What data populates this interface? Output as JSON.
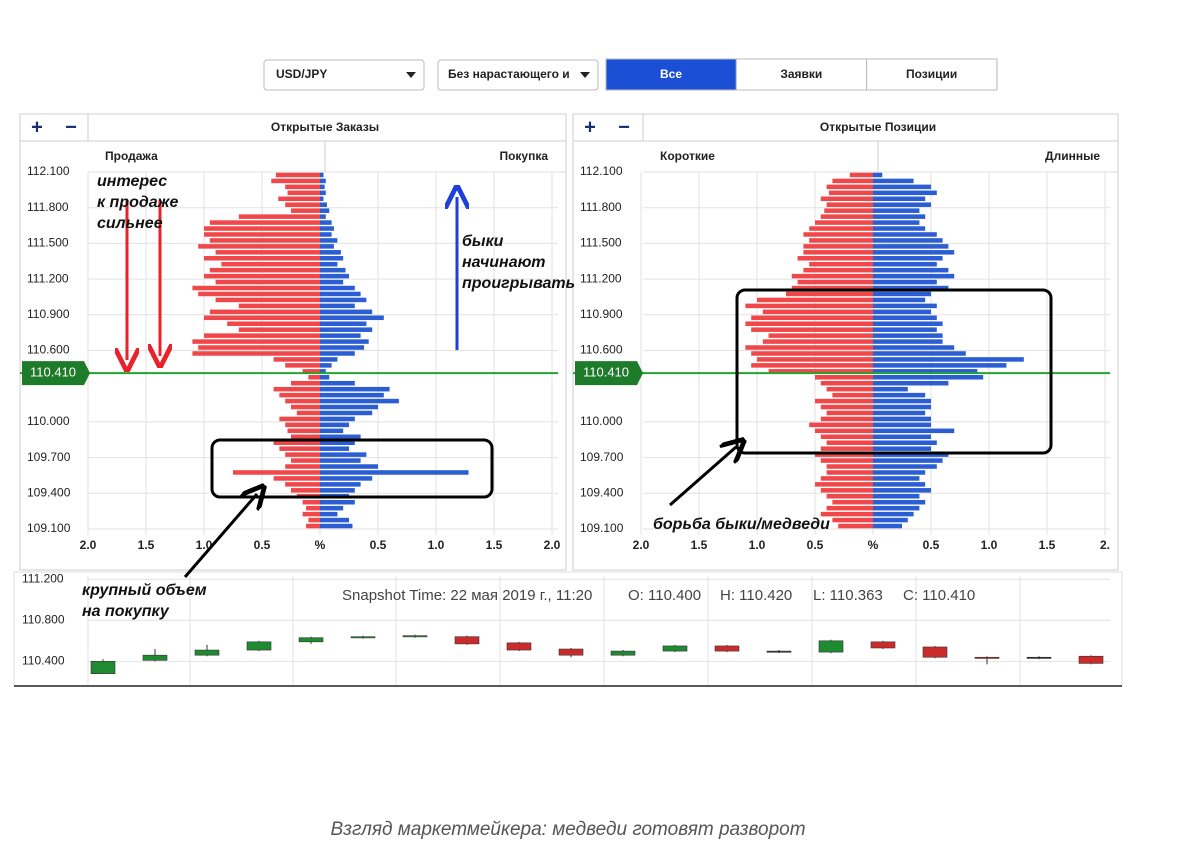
{
  "toolbar": {
    "symbol": "USD/JPY",
    "mode": "Без нарастающего и",
    "tabs": [
      "Все",
      "Заявки",
      "Позиции"
    ],
    "active_tab": 0,
    "active_color": "#1a4fd6"
  },
  "panels": [
    {
      "title": "Открытые Заказы",
      "zoom": [
        "+",
        "−"
      ],
      "left_label": "Продажа",
      "right_label": "Покупка",
      "left_color": "#f0484a",
      "right_color": "#2b5ed3",
      "grid": true,
      "ylim": [
        109.1,
        112.1
      ],
      "yticks": [
        {
          "value": 112.1,
          "label": "112.100"
        },
        {
          "value": 111.8,
          "label": "111.800"
        },
        {
          "value": 111.5,
          "label": "111.500"
        },
        {
          "value": 111.2,
          "label": "111.200"
        },
        {
          "value": 110.9,
          "label": "110.900"
        },
        {
          "value": 110.6,
          "label": "110.600"
        },
        {
          "value": 110.0,
          "label": "110.000"
        },
        {
          "value": 109.7,
          "label": "109.700"
        },
        {
          "value": 109.4,
          "label": "109.400"
        },
        {
          "value": 109.1,
          "label": "109.100"
        }
      ],
      "xlim": [
        0,
        2
      ],
      "xticks_left": [
        {
          "value": 2,
          "label": "2.0"
        },
        1.5,
        {
          "value": 1,
          "label": "1.0"
        },
        0.5
      ],
      "center_label": "%",
      "xticks_right": [
        0.5,
        {
          "value": 1,
          "label": "1.0"
        },
        1.5,
        {
          "value": 2,
          "label": "2.0"
        }
      ],
      "current_price": {
        "value": 110.41,
        "label": "110.410",
        "color": "#22a52e"
      },
      "left_values": [
        0.38,
        0.42,
        0.3,
        0.28,
        0.36,
        0.3,
        0.25,
        0.7,
        0.95,
        1.0,
        1.0,
        0.95,
        1.05,
        0.9,
        1.0,
        0.85,
        0.95,
        1.0,
        0.9,
        1.1,
        1.05,
        0.9,
        0.7,
        0.95,
        1.0,
        0.8,
        0.7,
        1.0,
        1.1,
        1.05,
        1.1,
        0.4,
        0.3,
        0.15,
        0.1,
        0.25,
        0.4,
        0.35,
        0.3,
        0.25,
        0.2,
        0.35,
        0.3,
        0.28,
        0.25,
        0.4,
        0.35,
        0.3,
        0.25,
        0.3,
        0.75,
        0.4,
        0.3,
        0.25,
        0.2,
        0.15,
        0.12,
        0.15,
        0.1,
        0.12
      ],
      "right_values": [
        0.03,
        0.05,
        0.04,
        0.05,
        0.03,
        0.06,
        0.08,
        0.05,
        0.1,
        0.12,
        0.1,
        0.15,
        0.12,
        0.18,
        0.2,
        0.15,
        0.22,
        0.25,
        0.2,
        0.3,
        0.35,
        0.4,
        0.3,
        0.45,
        0.55,
        0.4,
        0.45,
        0.35,
        0.42,
        0.38,
        0.3,
        0.15,
        0.1,
        0.05,
        0.08,
        0.3,
        0.6,
        0.55,
        0.68,
        0.5,
        0.45,
        0.3,
        0.25,
        0.2,
        0.35,
        0.3,
        0.25,
        0.4,
        0.35,
        0.5,
        1.28,
        0.45,
        0.35,
        0.3,
        0.25,
        0.3,
        0.2,
        0.15,
        0.25,
        0.28
      ]
    },
    {
      "title": "Открытые Позиции",
      "zoom": [
        "+",
        "−"
      ],
      "left_label": "Короткие",
      "right_label": "Длинные",
      "left_color": "#f0484a",
      "right_color": "#2b5ed3",
      "grid": true,
      "ylim": [
        109.1,
        112.1
      ],
      "yticks": [
        {
          "value": 112.1,
          "label": "112.100"
        },
        {
          "value": 111.8,
          "label": "111.800"
        },
        {
          "value": 111.5,
          "label": "111.500"
        },
        {
          "value": 111.2,
          "label": "111.200"
        },
        {
          "value": 110.9,
          "label": "110.900"
        },
        {
          "value": 110.6,
          "label": "110.600"
        },
        {
          "value": 110.0,
          "label": "110.000"
        },
        {
          "value": 109.7,
          "label": "109.700"
        },
        {
          "value": 109.4,
          "label": "109.400"
        },
        {
          "value": 109.1,
          "label": "109.100"
        }
      ],
      "xlim": [
        0,
        2
      ],
      "xticks_left": [
        {
          "value": 2,
          "label": "2.0"
        },
        1.5,
        {
          "value": 1,
          "label": "1.0"
        },
        0.5
      ],
      "center_label": "%",
      "xticks_right": [
        0.5,
        {
          "value": 1,
          "label": "1.0"
        },
        1.5,
        {
          "value": 2,
          "label": "2."
        }
      ],
      "current_price": {
        "value": 110.41,
        "label": "110.410",
        "color": "#22a52e"
      },
      "left_values": [
        0.2,
        0.35,
        0.4,
        0.38,
        0.45,
        0.4,
        0.42,
        0.45,
        0.5,
        0.55,
        0.6,
        0.55,
        0.6,
        0.6,
        0.65,
        0.55,
        0.6,
        0.7,
        0.65,
        0.7,
        0.75,
        1.0,
        1.1,
        0.95,
        1.05,
        1.1,
        1.05,
        0.9,
        0.95,
        1.1,
        1.05,
        1.0,
        1.05,
        0.9,
        0.5,
        0.45,
        0.4,
        0.35,
        0.5,
        0.45,
        0.4,
        0.45,
        0.55,
        0.5,
        0.45,
        0.4,
        0.45,
        0.5,
        0.45,
        0.4,
        0.4,
        0.45,
        0.5,
        0.45,
        0.4,
        0.35,
        0.4,
        0.45,
        0.35,
        0.3
      ],
      "right_values": [
        0.08,
        0.35,
        0.5,
        0.55,
        0.45,
        0.5,
        0.4,
        0.45,
        0.4,
        0.45,
        0.55,
        0.6,
        0.65,
        0.7,
        0.6,
        0.55,
        0.65,
        0.7,
        0.55,
        0.65,
        0.5,
        0.45,
        0.55,
        0.5,
        0.55,
        0.6,
        0.55,
        0.6,
        0.6,
        0.7,
        0.8,
        1.3,
        1.15,
        0.9,
        0.95,
        0.65,
        0.3,
        0.45,
        0.5,
        0.5,
        0.45,
        0.5,
        0.5,
        0.7,
        0.5,
        0.55,
        0.5,
        0.65,
        0.6,
        0.55,
        0.45,
        0.4,
        0.45,
        0.5,
        0.4,
        0.45,
        0.4,
        0.35,
        0.3,
        0.25
      ]
    }
  ],
  "candles": {
    "type": "candlestick",
    "ylim": [
      110.16,
      111.27
    ],
    "yticks": [
      {
        "value": 111.2,
        "label": "111.200"
      },
      {
        "value": 110.8,
        "label": "110.800"
      },
      {
        "value": 110.4,
        "label": "110.400"
      }
    ],
    "grid": true,
    "up_color": "#1f8a2f",
    "down_color": "#cc2b2b",
    "open": [
      110.28,
      110.41,
      110.46,
      110.51,
      110.59,
      110.63,
      110.64,
      110.64,
      110.58,
      110.52,
      110.46,
      110.5,
      110.55,
      110.5,
      110.49,
      110.59,
      110.54,
      110.44,
      110.44,
      110.45
    ],
    "close": [
      110.4,
      110.46,
      110.51,
      110.59,
      110.63,
      110.64,
      110.65,
      110.57,
      110.51,
      110.46,
      110.5,
      110.55,
      110.5,
      110.5,
      110.6,
      110.53,
      110.44,
      110.43,
      110.44,
      110.38
    ],
    "high": [
      110.42,
      110.52,
      110.56,
      110.6,
      110.64,
      110.65,
      110.66,
      110.65,
      110.59,
      110.53,
      110.51,
      110.56,
      110.56,
      110.51,
      110.61,
      110.6,
      110.55,
      110.45,
      110.45,
      110.46
    ],
    "low": [
      110.28,
      110.4,
      110.45,
      110.5,
      110.57,
      110.62,
      110.63,
      110.56,
      110.5,
      110.44,
      110.45,
      110.49,
      110.49,
      110.48,
      110.48,
      110.52,
      110.43,
      110.37,
      110.42,
      110.37
    ],
    "snapshot": {
      "time": "Snapshot Time: 22 мая 2019 г., 11:20",
      "open": "O: 110.400",
      "high": "H: 110.420",
      "low": "L: 110.363",
      "close": "C: 110.410"
    }
  },
  "annotations": [
    {
      "lines": [
        "интерес",
        "к продаже",
        "сильнее"
      ]
    },
    {
      "lines": [
        "быки",
        "начинают",
        "проигрывать"
      ]
    },
    {
      "lines": [
        "крупный объем",
        "на покупку"
      ]
    },
    {
      "lines": [
        "борьба быки/медведи"
      ]
    }
  ],
  "caption": "Взгляд маркетмейкера: медведи готовят разворот"
}
